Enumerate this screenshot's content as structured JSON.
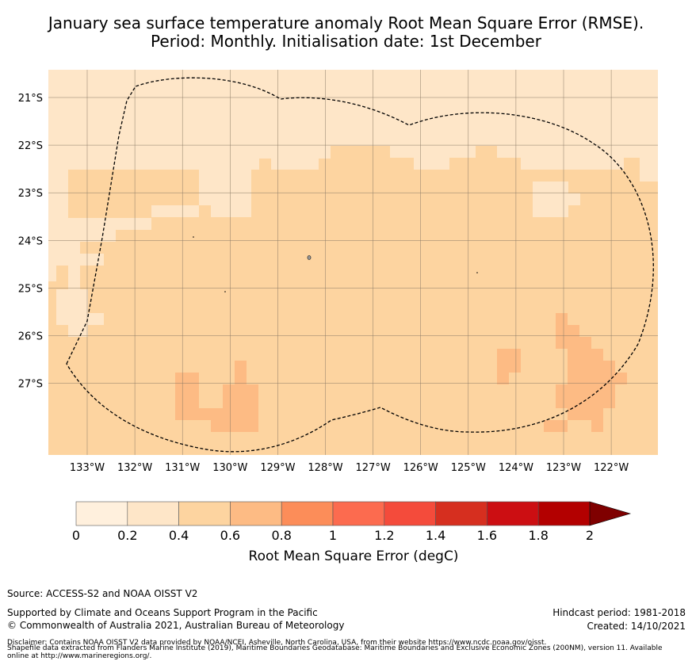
{
  "title": {
    "line1": "January sea surface temperature anomaly Root Mean Square Error (RMSE).",
    "line2": "Period: Monthly. Initialisation date: 1st December"
  },
  "map": {
    "lat_labels": [
      "21°S",
      "22°S",
      "23°S",
      "24°S",
      "25°S",
      "26°S",
      "27°S"
    ],
    "lon_labels": [
      "133°W",
      "132°W",
      "131°W",
      "130°W",
      "129°W",
      "128°W",
      "127°W",
      "126°W",
      "125°W",
      "124°W",
      "123°W",
      "122°W"
    ],
    "lat_range_deg": [
      -28.5,
      -20.4
    ],
    "lon_range_deg": [
      -133.8,
      -121.0
    ],
    "rmse_classes": [
      {
        "range": "0.2-0.4",
        "color": "#fee6c8"
      },
      {
        "range": "0.4-0.6",
        "color": "#fdd4a0"
      },
      {
        "range": "0.6-0.8",
        "color": "#fdbb84"
      }
    ]
  },
  "colorbar": {
    "ticks": [
      "0",
      "0.2",
      "0.4",
      "0.6",
      "0.8",
      "1",
      "1.2",
      "1.4",
      "1.6",
      "1.8",
      "2"
    ],
    "colors": [
      "#fff0dd",
      "#fee6c8",
      "#fdd4a0",
      "#fdbb84",
      "#fc8d59",
      "#fc6b4f",
      "#f44b3b",
      "#d62f1f",
      "#cc0e12",
      "#b30000"
    ],
    "extend_color": "#7f0000",
    "label": "Root Mean Square Error (degC)"
  },
  "footer": {
    "source": "Source: ACCESS-S2 and NOAA OISST V2",
    "supported": "Supported by Climate and Oceans Support Program in the Pacific",
    "copyright": "© Commonwealth of Australia 2021, Australian Bureau of Meteorology",
    "hindcast": "Hindcast period: 1981-2018",
    "created": "Created: 14/10/2021",
    "disclaimer_1": "Disclaimer: Contains NOAA OISST V2 data provided by NOAA/NCEI, Asheville, North Carolina, USA, from their website https://www.ncdc.noaa.gov/oisst.",
    "disclaimer_2": "Shapefile data extracted from Flanders Marine Institute (2019), Maritime Boundaries Geodatabase: Maritime Boundaries and Exclusive Economic Zones (200NM), version 11. Available",
    "disclaimer_3": "online at http://www.marineregions.org/."
  }
}
